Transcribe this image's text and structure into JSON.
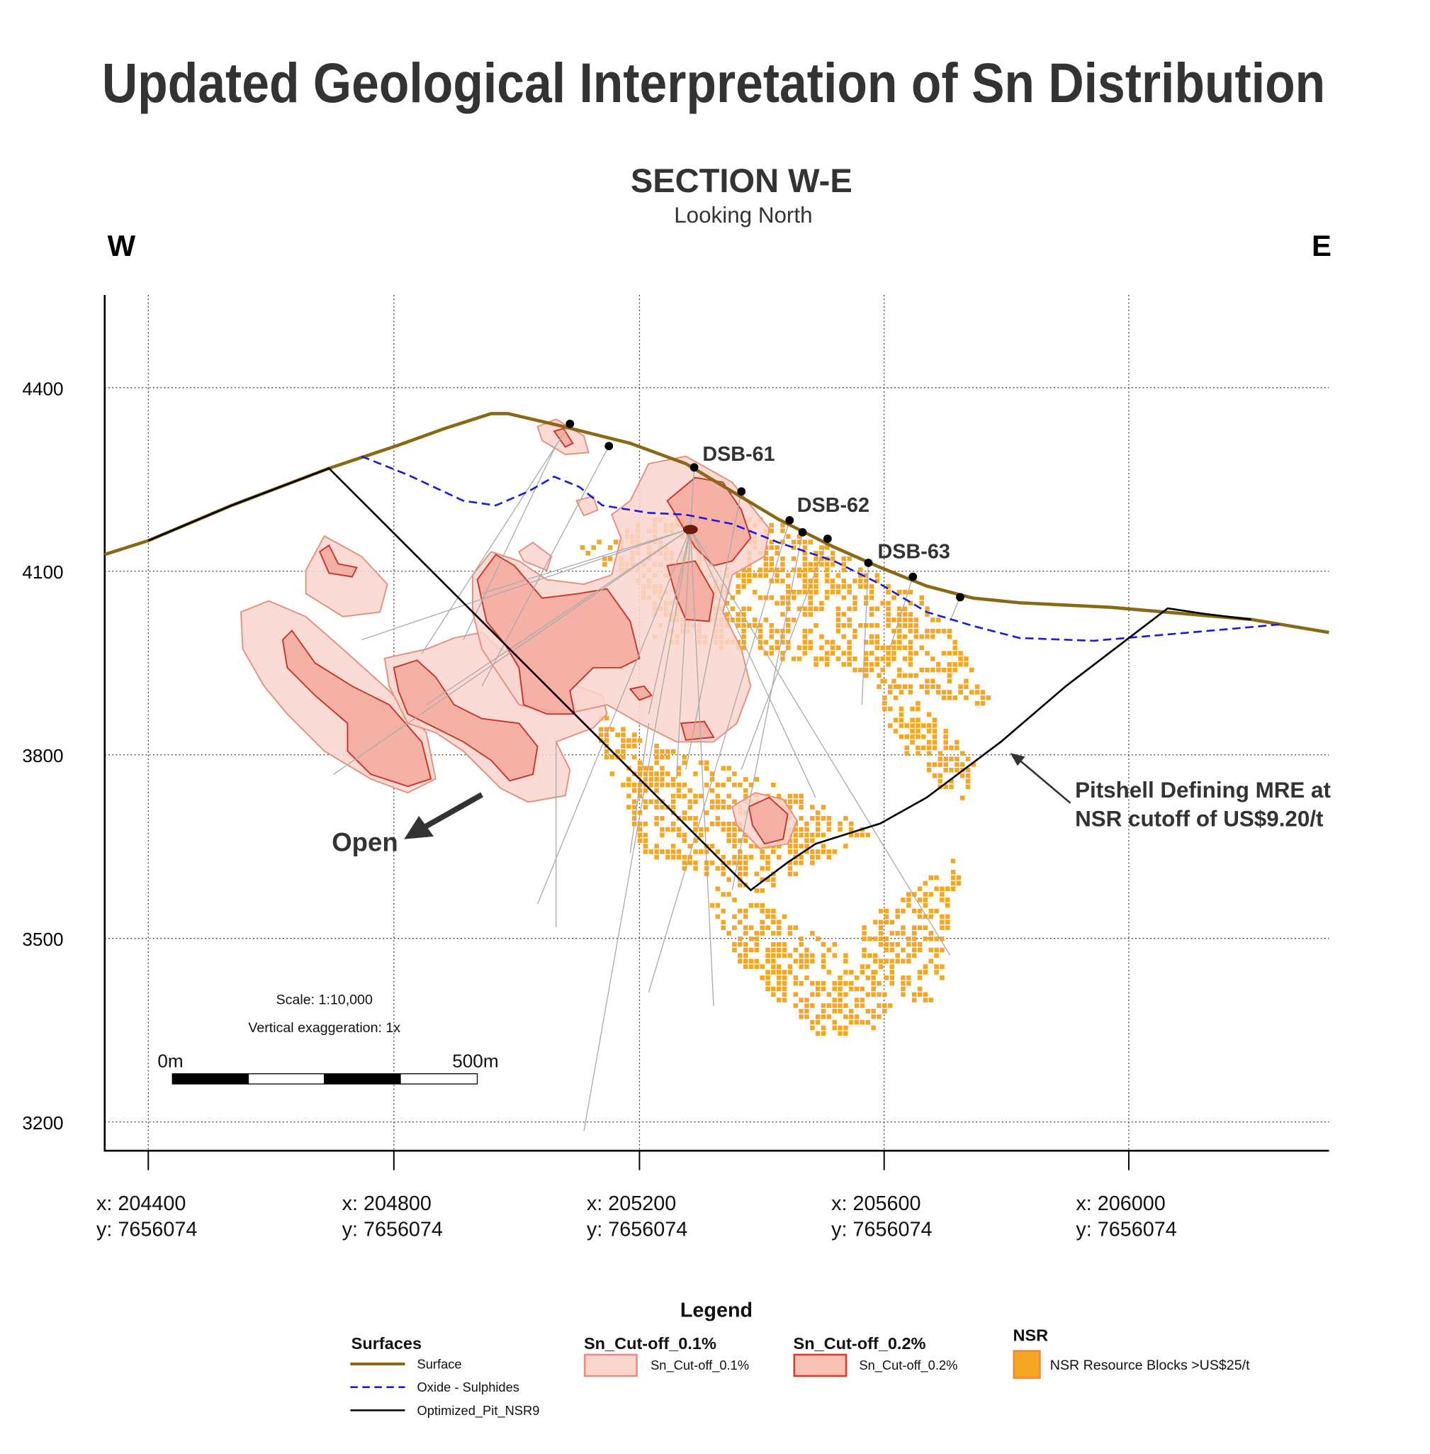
{
  "title": "Updated Geological Interpretation of Sn Distribution",
  "section": {
    "title": "SECTION W-E",
    "subtitle": "Looking North",
    "west": "W",
    "east": "E"
  },
  "y_axis": {
    "ticks": [
      "4400",
      "4100",
      "3800",
      "3500",
      "3200"
    ]
  },
  "x_axis": {
    "ticks": [
      {
        "x": "x: 204400",
        "y": "y: 7656074"
      },
      {
        "x": "x: 204800",
        "y": "y: 7656074"
      },
      {
        "x": "x: 205200",
        "y": "y: 7656074"
      },
      {
        "x": "x: 205600",
        "y": "y: 7656074"
      },
      {
        "x": "x: 206000",
        "y": "y: 7656074"
      }
    ]
  },
  "drillholes": [
    "DSB-61",
    "DSB-62",
    "DSB-63"
  ],
  "annotations": {
    "pitshell": [
      "Pitshell Defining MRE at",
      "NSR cutoff of US$9.20/t"
    ],
    "open": "Open"
  },
  "scale": {
    "ratio": "Scale: 1:10,000",
    "exaggeration": "Vertical exaggeration: 1x",
    "start": "0m",
    "end": "500m"
  },
  "legend": {
    "title": "Legend",
    "surfaces": {
      "header": "Surfaces",
      "items": [
        "Surface",
        "Oxide - Sulphides",
        "Optimized_Pit_NSR9"
      ]
    },
    "sn01": {
      "header": "Sn_Cut-off_0.1%",
      "label": "Sn_Cut-off_0.1%"
    },
    "sn02": {
      "header": "Sn_Cut-off_0.2%",
      "label": "Sn_Cut-off_0.2%"
    },
    "nsr": {
      "header": "NSR",
      "label": "NSR Resource Blocks >US$25/t"
    }
  },
  "colors": {
    "surface": "#8b6914",
    "oxide": "#1a1adf",
    "pit": "#000000",
    "sn01": "#f9d5cf",
    "sn02": "#f4a99d",
    "nsr": "#f5a623"
  }
}
